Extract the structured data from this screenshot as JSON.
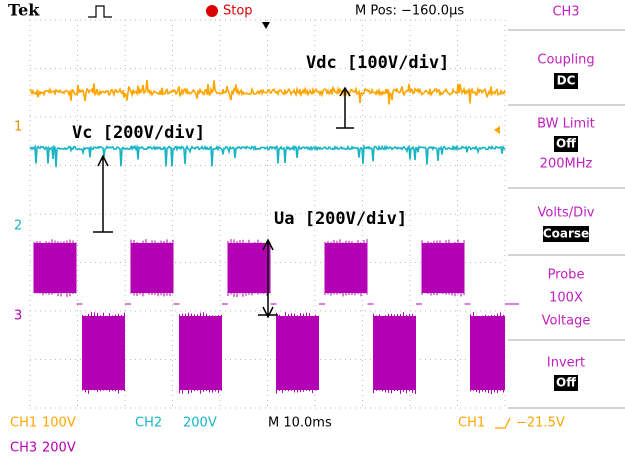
{
  "header": {
    "brand": "Tek",
    "state": "Stop",
    "position": "M Pos: −160.0µs"
  },
  "annotations": {
    "vdc": "Vdc [100V/div]",
    "vc": "Vc [200V/div]",
    "ua": "Ua [200V/div]"
  },
  "markers": [
    "1",
    "2",
    "3"
  ],
  "menu": {
    "channel": "CH3",
    "coupling": {
      "label": "Coupling",
      "value": "DC"
    },
    "bw_limit": {
      "label": "BW Limit",
      "value": "Off",
      "extra": "200MHz"
    },
    "volts_div": {
      "label": "Volts/Div",
      "value": "Coarse"
    },
    "probe": [
      "Probe",
      "100X",
      "Voltage"
    ],
    "invert": {
      "label": "Invert",
      "value": "Off"
    }
  },
  "footer": {
    "ch1": {
      "name": "CH1",
      "scale": "100V"
    },
    "ch2": {
      "name": "CH2",
      "scale": "200V"
    },
    "timebase": "M 10.0ms",
    "trigger": {
      "source": "CH1",
      "level": "−21.5V"
    },
    "ch3": {
      "name": "CH3",
      "scale": "200V"
    }
  }
}
